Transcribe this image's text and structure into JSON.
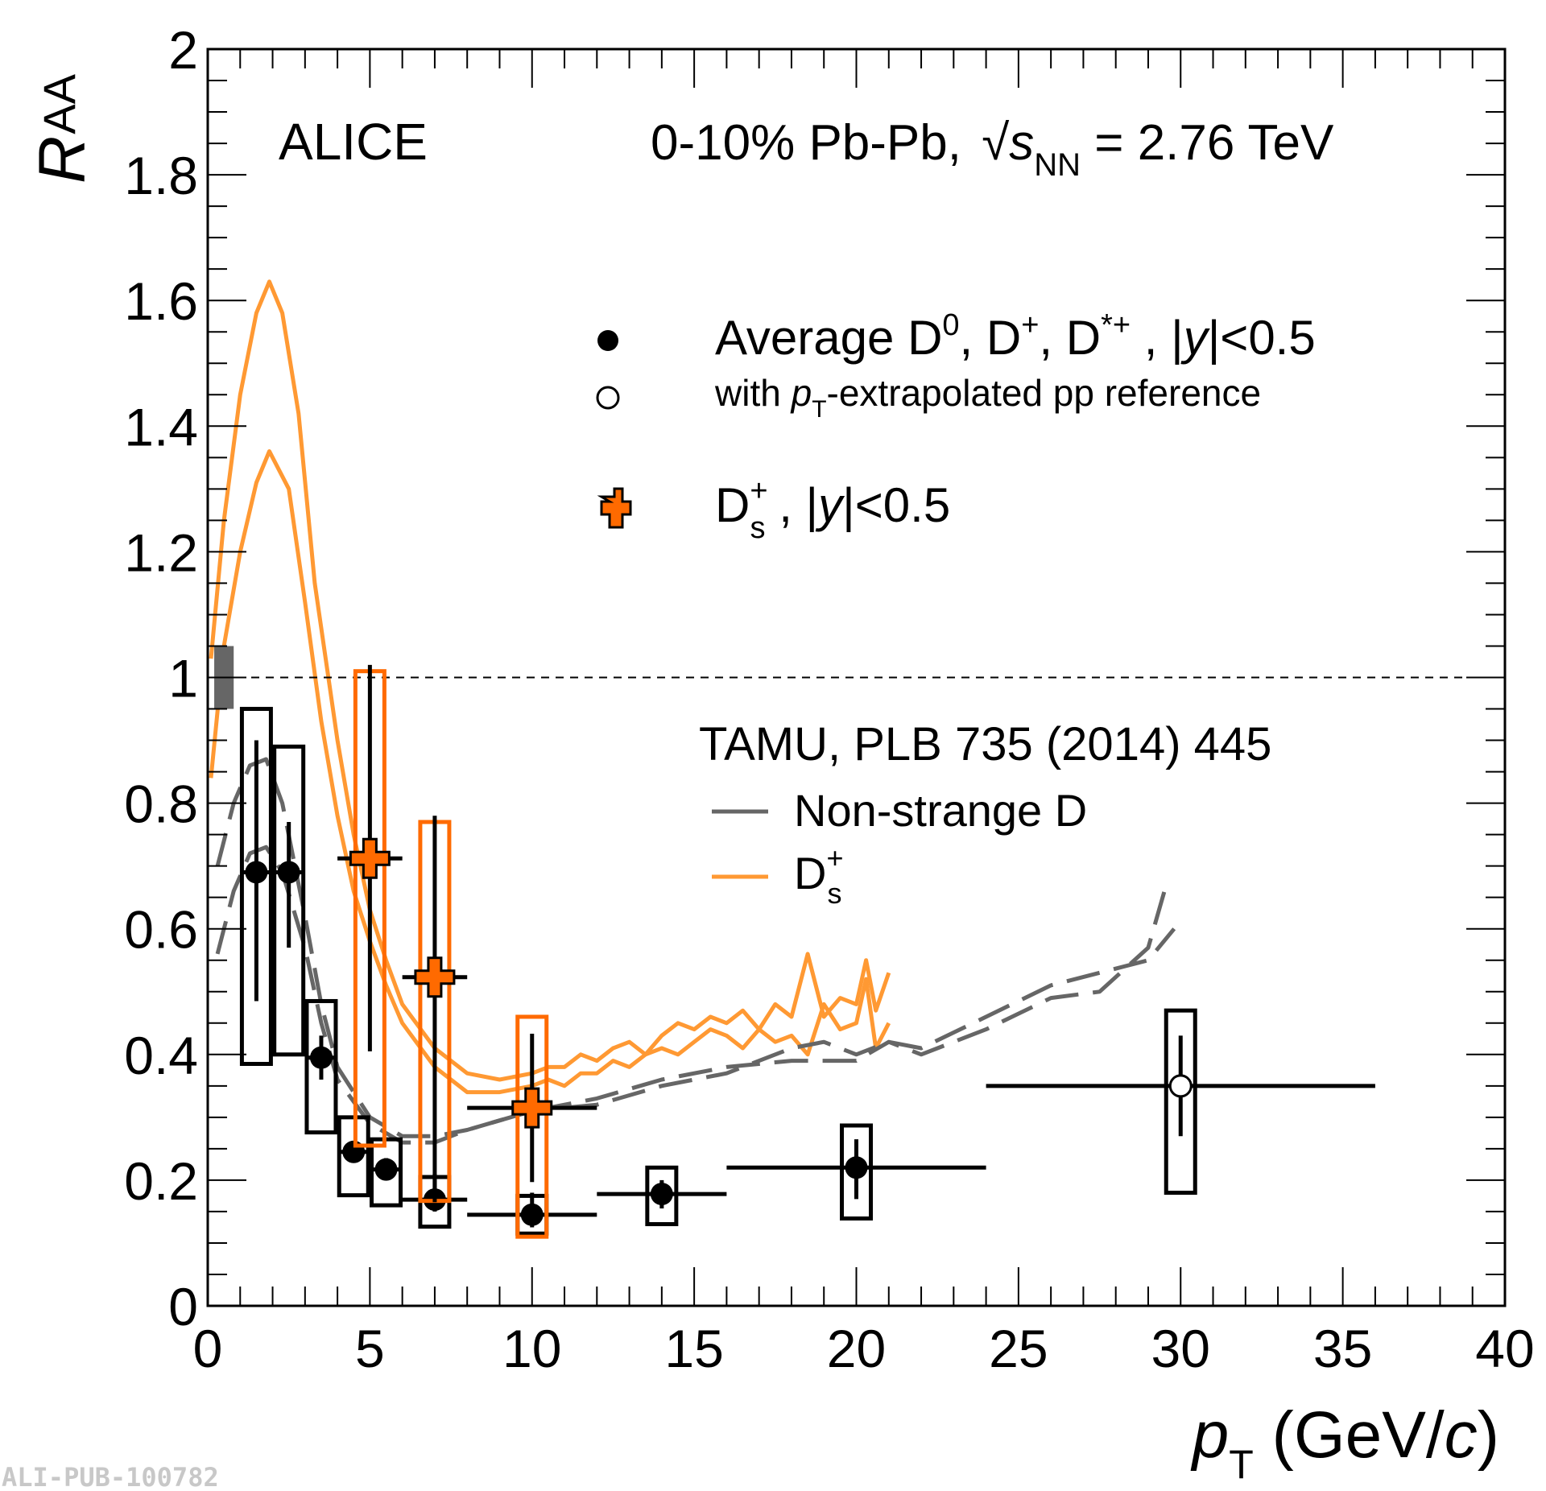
{
  "chart_data": {
    "type": "scatter",
    "title": "",
    "xlabel": "p_T (GeV/c)",
    "xlabel_parts": {
      "main": "p",
      "sub": "T",
      "unit": " (GeV/",
      "unit_italic": "c",
      "close": ")"
    },
    "ylabel": "R_AA",
    "ylabel_parts": {
      "main": "R",
      "sub": "AA"
    },
    "xlim": [
      0,
      40
    ],
    "ylim": [
      0,
      2
    ],
    "x_ticks": [
      0,
      5,
      10,
      15,
      20,
      25,
      30,
      35,
      40
    ],
    "x_tick_labels": [
      "0",
      "5",
      "10",
      "15",
      "20",
      "25",
      "30",
      "35",
      "40"
    ],
    "y_ticks": [
      0,
      0.2,
      0.4,
      0.6,
      0.8,
      1,
      1.2,
      1.4,
      1.6,
      1.8,
      2
    ],
    "y_tick_labels": [
      "0",
      "0.2",
      "0.4",
      "0.6",
      "0.8",
      "1",
      "1.2",
      "1.4",
      "1.6",
      "1.8",
      "2"
    ],
    "grid": false,
    "reference_line": 1,
    "normalization_box": {
      "x": [
        0.2,
        0.8
      ],
      "y": [
        0.95,
        1.05
      ],
      "color": "#666666"
    },
    "annotations": {
      "experiment": "ALICE",
      "system": {
        "pre": "0-10% Pb-Pb, ",
        "s": "s",
        "sub": "NN",
        "post": " = 2.76 TeV"
      },
      "model_ref": "TAMU, PLB 735 (2014) 445",
      "watermark": "ALI-PUB-100782"
    },
    "legend": {
      "placement": "top-right",
      "entries": [
        {
          "marker": "filled-circle",
          "text": "Average D0, D+, D*+ , |y|<0.5"
        },
        {
          "marker": "open-circle",
          "text": "with pT-extrapolated pp reference"
        },
        {
          "marker": "orange-cross",
          "text": "Ds+ , |y|<0.5"
        }
      ],
      "model_entries": [
        {
          "style": "dashed-gray",
          "text": "Non-strange D"
        },
        {
          "style": "solid-orange",
          "text": "Ds+"
        }
      ]
    },
    "colors": {
      "data": "#000000",
      "ds": "#ff6a00",
      "ds_model": "#ff9933",
      "nonstrange_model": "#666666"
    },
    "series": [
      {
        "name": "Average D0, D+, D*+",
        "marker": "filled-circle",
        "points": [
          {
            "x": 1.5,
            "y": 0.69,
            "xerr": [
              1,
              2
            ],
            "stat": [
              0.485,
              0.9
            ],
            "syst": [
              0.385,
              0.95
            ]
          },
          {
            "x": 2.5,
            "y": 0.69,
            "xerr": [
              2,
              3
            ],
            "stat": [
              0.57,
              0.77
            ],
            "syst": [
              0.4,
              0.89
            ]
          },
          {
            "x": 3.5,
            "y": 0.395,
            "xerr": [
              3,
              4
            ],
            "stat": [
              0.36,
              0.43
            ],
            "syst": [
              0.276,
              0.485
            ]
          },
          {
            "x": 4.5,
            "y": 0.245,
            "xerr": [
              4,
              5
            ],
            "stat": [
              0.23,
              0.26
            ],
            "syst": [
              0.176,
              0.3
            ]
          },
          {
            "x": 5.5,
            "y": 0.217,
            "xerr": [
              5,
              6
            ],
            "stat": [
              0.2,
              0.235
            ],
            "syst": [
              0.16,
              0.265
            ]
          },
          {
            "x": 7,
            "y": 0.169,
            "xerr": [
              6,
              8
            ],
            "stat": [
              0.15,
              0.21
            ],
            "syst": [
              0.126,
              0.205
            ]
          },
          {
            "x": 10,
            "y": 0.145,
            "xerr": [
              8,
              12
            ],
            "stat": [
              0.125,
              0.18
            ],
            "syst": [
              0.115,
              0.175
            ]
          },
          {
            "x": 14,
            "y": 0.178,
            "xerr": [
              12,
              16
            ],
            "stat": [
              0.155,
              0.2
            ],
            "syst": [
              0.13,
              0.22
            ]
          },
          {
            "x": 20,
            "y": 0.22,
            "xerr": [
              16,
              24
            ],
            "stat": [
              0.17,
              0.265
            ],
            "syst": [
              0.139,
              0.287
            ]
          }
        ]
      },
      {
        "name": "with pT-extrapolated pp reference",
        "marker": "open-circle",
        "points": [
          {
            "x": 30,
            "y": 0.35,
            "xerr": [
              24,
              36
            ],
            "stat": [
              0.27,
              0.43
            ],
            "syst": [
              0.18,
              0.47
            ]
          }
        ]
      },
      {
        "name": "Ds+",
        "marker": "orange-cross",
        "points": [
          {
            "x": 5,
            "y": 0.712,
            "xerr": [
              4,
              6
            ],
            "stat": [
              0.405,
              1.02
            ],
            "syst": [
              0.255,
              1.01
            ]
          },
          {
            "x": 7,
            "y": 0.523,
            "xerr": [
              6,
              8
            ],
            "stat": [
              0.165,
              0.78
            ],
            "syst": [
              0.167,
              0.77
            ]
          },
          {
            "x": 10,
            "y": 0.315,
            "xerr": [
              8,
              12
            ],
            "stat": [
              0.197,
              0.433
            ],
            "syst": [
              0.11,
              0.46
            ]
          }
        ]
      }
    ],
    "models": [
      {
        "name": "TAMU Ds+ (upper)",
        "style": "solid-orange",
        "x": [
          0.1,
          0.5,
          1,
          1.5,
          1.9,
          2.3,
          2.8,
          3.3,
          4,
          4.5,
          5,
          5.5,
          6,
          7,
          8,
          9,
          10,
          10.5,
          11,
          11.5,
          12,
          12.5,
          13,
          13.5,
          14,
          14.5,
          15,
          15.5,
          16,
          16.5,
          17,
          17.5,
          18,
          18.5,
          19,
          19.5,
          20,
          20.3,
          20.6,
          21
        ],
        "y": [
          1.03,
          1.25,
          1.45,
          1.58,
          1.63,
          1.58,
          1.42,
          1.15,
          0.9,
          0.75,
          0.63,
          0.55,
          0.48,
          0.41,
          0.37,
          0.36,
          0.37,
          0.38,
          0.38,
          0.4,
          0.39,
          0.41,
          0.42,
          0.4,
          0.43,
          0.45,
          0.44,
          0.46,
          0.45,
          0.47,
          0.44,
          0.48,
          0.46,
          0.56,
          0.46,
          0.49,
          0.48,
          0.55,
          0.47,
          0.53
        ]
      },
      {
        "name": "TAMU Ds+ (lower)",
        "style": "solid-orange",
        "x": [
          0.1,
          0.5,
          1,
          1.5,
          1.9,
          2.5,
          3,
          3.5,
          4,
          4.5,
          5,
          5.5,
          6,
          7,
          8,
          9,
          10,
          10.5,
          11,
          11.5,
          12,
          12.5,
          13,
          13.5,
          14,
          14.5,
          15,
          15.5,
          16,
          16.5,
          17,
          17.5,
          18,
          18.5,
          19,
          19.5,
          20,
          20.3,
          20.6,
          21
        ],
        "y": [
          0.84,
          1.05,
          1.2,
          1.31,
          1.36,
          1.3,
          1.12,
          0.93,
          0.78,
          0.66,
          0.58,
          0.51,
          0.45,
          0.38,
          0.34,
          0.34,
          0.35,
          0.36,
          0.35,
          0.37,
          0.37,
          0.39,
          0.38,
          0.4,
          0.41,
          0.4,
          0.42,
          0.44,
          0.43,
          0.41,
          0.44,
          0.42,
          0.43,
          0.4,
          0.48,
          0.44,
          0.45,
          0.52,
          0.41,
          0.45
        ]
      },
      {
        "name": "TAMU Non-strange D (upper)",
        "style": "dashed-gray",
        "x": [
          0.3,
          0.8,
          1.3,
          1.8,
          2.3,
          3,
          3.5,
          4,
          5,
          6,
          7,
          8,
          10,
          12,
          14,
          16,
          18,
          20,
          21,
          22,
          24,
          26,
          27.5,
          29,
          29.5
        ],
        "y": [
          0.7,
          0.8,
          0.86,
          0.87,
          0.8,
          0.62,
          0.48,
          0.38,
          0.3,
          0.27,
          0.27,
          0.28,
          0.31,
          0.33,
          0.36,
          0.38,
          0.39,
          0.39,
          0.42,
          0.4,
          0.44,
          0.49,
          0.5,
          0.57,
          0.66
        ]
      },
      {
        "name": "TAMU Non-strange D (lower)",
        "style": "dashed-gray",
        "x": [
          0.3,
          0.8,
          1.3,
          1.8,
          2.3,
          3,
          3.5,
          4,
          5,
          6,
          7,
          8,
          10,
          12,
          14,
          16,
          18,
          19,
          20,
          21,
          22,
          24,
          26,
          27.5,
          29,
          29.8
        ],
        "y": [
          0.56,
          0.66,
          0.72,
          0.73,
          0.69,
          0.57,
          0.45,
          0.36,
          0.29,
          0.26,
          0.26,
          0.28,
          0.31,
          0.32,
          0.35,
          0.37,
          0.41,
          0.42,
          0.4,
          0.42,
          0.41,
          0.46,
          0.51,
          0.53,
          0.55,
          0.6
        ]
      }
    ]
  }
}
